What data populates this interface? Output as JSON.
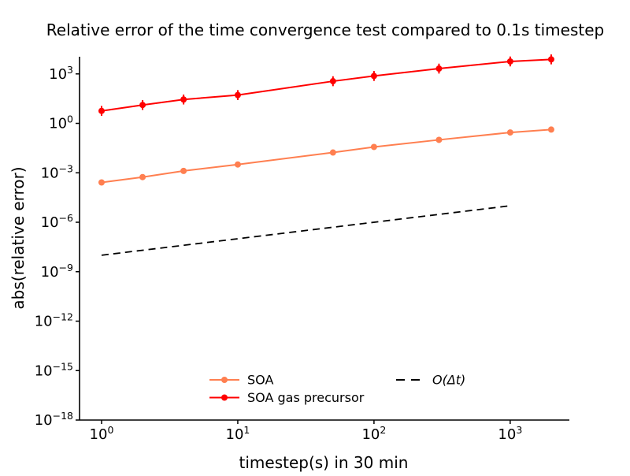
{
  "figure": {
    "background": "#ffffff",
    "text_color": "#000000"
  },
  "chart_data": {
    "type": "line",
    "title": "Relative error of the time convergence test compared to 0.1s timestep",
    "xlabel": "timestep(s) in 30 min",
    "ylabel": "abs(relative error)",
    "x_scale": "log",
    "y_scale": "log",
    "xlim": [
      0.689,
      2683
    ],
    "ylim": [
      1e-18,
      11000.0
    ],
    "x_tick_exponents": [
      0,
      1,
      2,
      3
    ],
    "y_tick_exponents": [
      3,
      0,
      -3,
      -6,
      -9,
      -12,
      -15,
      -18
    ],
    "grid": false,
    "spines": [
      "left",
      "bottom"
    ],
    "x": [
      1,
      2,
      4,
      10,
      50,
      100,
      300,
      1000,
      2000
    ],
    "series": [
      {
        "name": "SOA",
        "color": "#FF7F50",
        "marker": "circle",
        "line_style": "solid",
        "values": [
          0.00026,
          0.00055,
          0.0013,
          0.0032,
          0.017,
          0.037,
          0.1,
          0.28,
          0.42
        ]
      },
      {
        "name": "SOA gas precursor",
        "color": "#FF0000",
        "marker": "circle",
        "line_style": "solid",
        "error_factor": 2,
        "values": [
          5.7,
          13,
          28,
          52,
          360,
          750,
          2100,
          5700,
          7600
        ]
      }
    ],
    "reference_line": {
      "name": "O(Δt)",
      "color": "#000000",
      "line_style": "dashed",
      "x": [
        1,
        1000
      ],
      "y": [
        1e-08,
        1e-05
      ]
    },
    "legend": {
      "position": "lower center",
      "frame": false,
      "entries": [
        {
          "label": "SOA",
          "color": "#FF7F50",
          "marker": "circle",
          "line_style": "solid",
          "italic": false
        },
        {
          "label": "SOA gas precursor",
          "color": "#FF0000",
          "marker": "circle",
          "line_style": "solid",
          "italic": false
        },
        {
          "label": "O(Δt)",
          "color": "#000000",
          "marker": "none",
          "line_style": "dashed",
          "italic": true
        }
      ]
    }
  }
}
